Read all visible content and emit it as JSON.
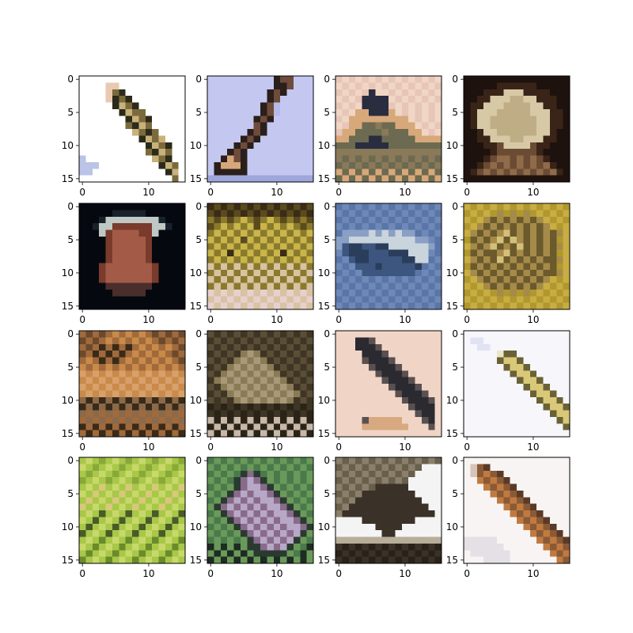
{
  "chart_data": {
    "type": "heatmap",
    "layout": {
      "rows": 4,
      "cols": 4
    },
    "image_size": 16,
    "x_ticks": [
      0,
      10
    ],
    "y_ticks": [
      0,
      5,
      10,
      15
    ],
    "x_tick_labels": [
      "0",
      "10"
    ],
    "y_tick_labels": [
      "0",
      "5",
      "10",
      "15"
    ],
    "grid": false,
    "panels": [
      {
        "id": "r0c0",
        "description": "diagonal dark brown/olive bird on white",
        "background": "#ffffff",
        "palette": [
          "#ffffff",
          "#e9c9b0",
          "#7b6a3d",
          "#2c2a18",
          "#c8b27a",
          "#b9c4e7"
        ],
        "pixels": [
          "0000000000000000",
          "0000110000000000",
          "0000123000000000",
          "0000132300000000",
          "0000034230000000",
          "0000003422000000",
          "0000000342300000",
          "0000000234200000",
          "0000000042320000",
          "0000000003424000",
          "0000000000342300",
          "0000000000234200",
          "5000000000042300",
          "5550000000003420",
          "5500000000000340",
          "0000000000000020"
        ]
      },
      {
        "id": "r1c0",
        "description": "light blue sky with diagonal dark bird",
        "background": "#c4c8f0",
        "palette": [
          "#c4c8f0",
          "#b4bbe9",
          "#2a1f1a",
          "#6e4b3a",
          "#d7a77a",
          "#9fa6dc"
        ],
        "pixels": [
          "0000000000233000",
          "0000000000223000",
          "0000000002320000",
          "0000000002300000",
          "0000000023100000",
          "0000000023100000",
          "0000000232000000",
          "0000000320000000",
          "0000002320000000",
          "0000023200000000",
          "0000232000000000",
          "0002320000000000",
          "0024320000000000",
          "0244420000000000",
          "0222220000000000",
          "5555555555555555"
        ]
      },
      {
        "id": "r2c0",
        "description": "pinkish/beige scene with dark shape",
        "background": "#e7c5b8",
        "palette": [
          "#e7c5b8",
          "#f0d6c4",
          "#2a2c3f",
          "#6c6a50",
          "#d7a87a",
          "#8a7a5a"
        ],
        "pixels": [
          "0101010101010101",
          "1010101010101010",
          "0101021101010101",
          "1010222210101010",
          "0101222201010101",
          "1014422241010101",
          "0144444444410101",
          "1044335334441010",
          "0443333533344101",
          "4433322333334444",
          "3332222233333333",
          "5555555555555555",
          "5353535353535353",
          "3535353535353535",
          "4343434343434343",
          "3434343434343434"
        ]
      },
      {
        "id": "r3c0",
        "description": "dark scene with pale blob",
        "background": "#1e120e",
        "palette": [
          "#1e120e",
          "#3a2418",
          "#d8c9a6",
          "#bfae85",
          "#6b4b33",
          "#8f6b4a"
        ],
        "pixels": [
          "0000000000000000",
          "0000011111100000",
          "0001112221111000",
          "0011222332211100",
          "0112223333221100",
          "0122233333222110",
          "0122333333322110",
          "0122333333322110",
          "0012233333322100",
          "0011222332221100",
          "0001142222411000",
          "0000144444410000",
          "0001455454541000",
          "0014545454545100",
          "0145454545454510",
          "0000000000000000"
        ]
      },
      {
        "id": "r0c1",
        "description": "dark background with reddish object",
        "background": "#05090f",
        "palette": [
          "#05090f",
          "#18222a",
          "#7a3a2c",
          "#a35b48",
          "#bfc8c4",
          "#4a2e2b"
        ],
        "pixels": [
          "0000000000000000",
          "0000011111000000",
          "0001444444441000",
          "0014422222244100",
          "0004233332240000",
          "0000233333200000",
          "0000233333200000",
          "0000233333200000",
          "0000233333200000",
          "0002333333320000",
          "0002333333320000",
          "0002333333320000",
          "0000555555500000",
          "0000055555000000",
          "0000000000000000",
          "0000000000000000"
        ]
      },
      {
        "id": "r1c1",
        "description": "olive/yellow textured scene",
        "background": "#8a7a2c",
        "palette": [
          "#8a7a2c",
          "#5a4a1e",
          "#c9b54a",
          "#d8c2a2",
          "#3a2c16",
          "#e8d0cf"
        ],
        "pixels": [
          "4141414141414141",
          "1414141414141414",
          "0101020102010101",
          "1020202120202010",
          "0202020202020202",
          "2020212020202020",
          "0202020202020202",
          "2024202020242020",
          "0202020202020202",
          "3030303030303030",
          "0303030303030303",
          "3030303030303030",
          "0303030303030303",
          "5353535353535353",
          "3535353535353535",
          "5353535353535353"
        ]
      },
      {
        "id": "r2c1",
        "description": "blue sky with streak",
        "background": "#5a76a8",
        "palette": [
          "#5a76a8",
          "#6e88b8",
          "#3c5680",
          "#c9d4dc",
          "#2a3e5c",
          "#8aa0c4"
        ],
        "pixels": [
          "0101010101010101",
          "1010101010101010",
          "0101010101010101",
          "1010101010101010",
          "0555535353550101",
          "5533333333335510",
          "5244224433333350",
          "1244422244433310",
          "0124422222443301",
          "1012224222224010",
          "0101222222220101",
          "1010101010101010",
          "0101010101010101",
          "1010101010101010",
          "0101010101010101",
          "1010101010101010"
        ]
      },
      {
        "id": "r3c1",
        "description": "olive/yellow textured scene with bird",
        "background": "#b0982e",
        "palette": [
          "#b0982e",
          "#8a7a3a",
          "#c8ad42",
          "#6a5a2c",
          "#d4bf78",
          "#a68a4a"
        ],
        "pixels": [
          "2020202020202020",
          "0202050505020202",
          "2025353535352020",
          "0253535353535202",
          "2535354353535352",
          "0353543453535302",
          "2535435343535352",
          "0353354353535302",
          "2535343535353352",
          "0353535353535302",
          "2535353535353352",
          "0253535353535202",
          "2025353535352020",
          "0202050505020202",
          "2020202020202020",
          "0202020202020202"
        ]
      },
      {
        "id": "r0c2",
        "description": "orange/brown textured scene",
        "background": "#6b4a2c",
        "palette": [
          "#6b4a2c",
          "#c98a4a",
          "#3a2a18",
          "#a06a3c",
          "#d8a06a",
          "#8a6a4a"
        ],
        "pixels": [
          "3030313131303030",
          "0303131313130303",
          "3032323231313130",
          "0323232313131303",
          "3132323131313130",
          "1313131313131313",
          "4141414141414141",
          "1414141414141414",
          "4141414141414141",
          "1414141414141414",
          "5252525252525252",
          "2525252525252525",
          "5353535353535353",
          "3535353535353535",
          "2323232323232323",
          "3232323232323232"
        ]
      },
      {
        "id": "r1c2",
        "description": "olive/brown textured scene with bird",
        "background": "#5a4f36",
        "palette": [
          "#5a4f36",
          "#3e3524",
          "#8a7a56",
          "#a89a78",
          "#2a2418",
          "#c8b8a8"
        ],
        "pixels": [
          "0101010101010101",
          "1010101010101010",
          "0101010101010101",
          "1010123210101010",
          "0101232321010101",
          "1012323232101010",
          "0123232323210101",
          "1232323232321010",
          "0123232323232101",
          "1012323232323210",
          "0101232323232101",
          "4141414141414141",
          "1414141414141414",
          "5454545454545454",
          "4545454545454545",
          "5454545454545454"
        ]
      },
      {
        "id": "r2c2",
        "description": "peach/pink background with dark bird",
        "background": "#f0d5c6",
        "palette": [
          "#f0d5c6",
          "#e8cbb8",
          "#2a2a30",
          "#5a5050",
          "#d8a880",
          "#f8e4dc"
        ],
        "pixels": [
          "0000000000000000",
          "0002230000000000",
          "0002223000000000",
          "0000222300000000",
          "0000322230000000",
          "0000032223000000",
          "0000003222300000",
          "0000000322230000",
          "0000000032223000",
          "0000000003222300",
          "0000000000322230",
          "0000000000032220",
          "0000000000003220",
          "0000344444000320",
          "0000444444400030",
          "0000000000000000"
        ]
      },
      {
        "id": "r3c2",
        "description": "white background with diagonal striped yellow bird",
        "background": "#f6f6fb",
        "palette": [
          "#f6f6fb",
          "#dfe3f4",
          "#2c2a1c",
          "#6a6236",
          "#d8c878",
          "#ece6c8"
        ],
        "pixels": [
          "0000000000000000",
          "0110000000000000",
          "0011000000000000",
          "0000053300000000",
          "0000034430000000",
          "0000003443000000",
          "0000000344300000",
          "0000000034430000",
          "0000000003443000",
          "0000000000344300",
          "0000000000034430",
          "0000000000003443",
          "0000000000000344",
          "0000000000000034",
          "0000000000000003",
          "0000000000000000"
        ]
      },
      {
        "id": "r0c3",
        "description": "bright yellow-green foliage",
        "background": "#a8c848",
        "palette": [
          "#a8c848",
          "#c8d86a",
          "#8aa83a",
          "#6a8a2c",
          "#d8c87a",
          "#4a5a2a"
        ],
        "pixels": [
          "0102010201020102",
          "1020102010201020",
          "0201020102010201",
          "2010201020102010",
          "0104010401040104",
          "1040104010401040",
          "0401040104010401",
          "4010401040104010",
          "0105010501050105",
          "1050105010501050",
          "0501050105010501",
          "5010501050105010",
          "0103010301030103",
          "1030103010301030",
          "0301030103010301",
          "3010301030103010"
        ]
      },
      {
        "id": "r1c3",
        "description": "green/teal foliage with bird",
        "background": "#4a7a4a",
        "palette": [
          "#4a7a4a",
          "#6a9a5a",
          "#2a3a30",
          "#8a6a8a",
          "#b8a8c8",
          "#1e2a22"
        ],
        "pixels": [
          "0101010101010101",
          "1010101010101010",
          "0101023201010101",
          "1010234321010101",
          "0101234432101010",
          "1012343443210101",
          "0123434344321010",
          "1234343434432101",
          "0123434343443210",
          "1012343434344321",
          "0101234343434432",
          "1010123434343421",
          "0101012343434210",
          "5151512234342105",
          "1515151222221051",
          "5151515151515151"
        ]
      },
      {
        "id": "r2c3",
        "description": "grey/brown scene with bird",
        "background": "#8a7f6a",
        "palette": [
          "#8a7f6a",
          "#6a5f4a",
          "#f4f4f4",
          "#3a3228",
          "#b8ad98",
          "#2a2218"
        ],
        "pixels": [
          "0101010101010101",
          "1010101010101222",
          "0101010101012222",
          "1010101010122222",
          "0101013333322222",
          "1010333333332222",
          "0103333333333222",
          "1033333333333322",
          "0333333333333332",
          "2222333333332222",
          "2222223333222222",
          "2222222332222222",
          "4444444444444444",
          "3535353535353535",
          "5353535353535353",
          "3535353535353535"
        ]
      },
      {
        "id": "r3c3",
        "description": "white background with orange-brown bird",
        "background": "#f8f4f4",
        "palette": [
          "#f8f4f4",
          "#e4e0e6",
          "#5a3a26",
          "#c07a40",
          "#8a5a36",
          "#d8c4b6"
        ],
        "pixels": [
          "0000000000000000",
          "0542000000000000",
          "0543420000000000",
          "0034342000000000",
          "0003434200000000",
          "0000343420000000",
          "0000034342000000",
          "0000003434200000",
          "0000000343420000",
          "0000000034342000",
          "0000000003434200",
          "0000000000343420",
          "1111100000034342",
          "1111110000003434",
          "0111111000000343",
          "0001111000000034"
        ]
      }
    ]
  }
}
